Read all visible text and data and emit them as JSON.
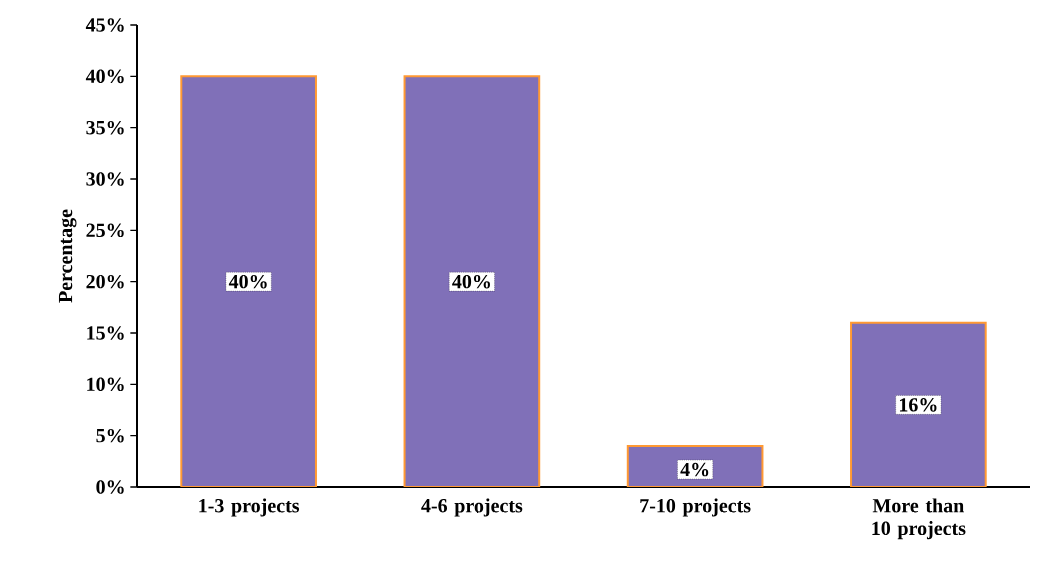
{
  "chart_data": {
    "type": "bar",
    "ylabel": "Percentage",
    "categories": [
      "1-3 projects",
      "4-6 projects",
      "7-10 projects",
      "More than 10 projects"
    ],
    "values": [
      40,
      40,
      4,
      16
    ],
    "value_labels": [
      "40%",
      "40%",
      "4%",
      "16%"
    ],
    "color": "#8070b8",
    "ylim": [
      0,
      45
    ],
    "yticks": [
      {
        "value": 0,
        "label": "0%"
      },
      {
        "value": 5,
        "label": "5%"
      },
      {
        "value": 10,
        "label": "10%"
      },
      {
        "value": 15,
        "label": "15%"
      },
      {
        "value": 20,
        "label": "20%"
      },
      {
        "value": 25,
        "label": "25%"
      },
      {
        "value": 30,
        "label": "30%"
      },
      {
        "value": 35,
        "label": "35%"
      },
      {
        "value": 40,
        "label": "40%"
      },
      {
        "value": 45,
        "label": "45%"
      }
    ],
    "grid": false
  }
}
